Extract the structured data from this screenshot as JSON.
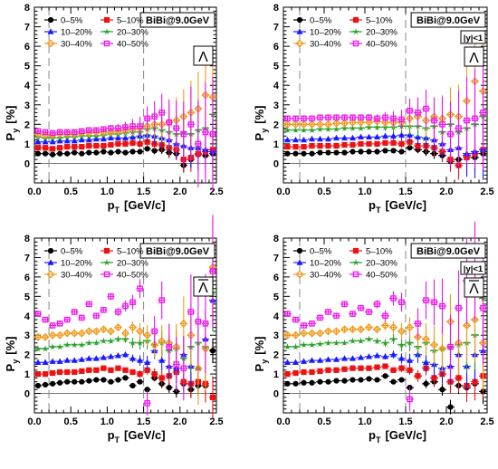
{
  "chart_data": [
    {
      "type": "scatter",
      "tag": "BiBi@9.0GeV",
      "particle": "Λ",
      "particle_bar": false,
      "rapidity_cut": "",
      "xlabel": "p_T [GeV/c]",
      "ylabel": "P_y [%]",
      "xlim": [
        0,
        2.5
      ],
      "ylim": [
        -1,
        8
      ],
      "xticks": [
        "0.0",
        "0.5",
        "1.0",
        "1.5",
        "2.0",
        "2.5"
      ],
      "yticks": [
        "0",
        "1",
        "2",
        "3",
        "4",
        "5",
        "6",
        "7",
        "8"
      ],
      "cut_lines_x": [
        0.2,
        1.5
      ],
      "legend_placement": "top-left",
      "x": [
        0.05,
        0.15,
        0.25,
        0.35,
        0.45,
        0.55,
        0.65,
        0.75,
        0.85,
        0.95,
        1.05,
        1.15,
        1.25,
        1.35,
        1.45,
        1.55,
        1.65,
        1.75,
        1.85,
        1.95,
        2.05,
        2.15,
        2.25,
        2.35,
        2.45
      ],
      "series": [
        {
          "name": "0–5%",
          "values": [
            0.5,
            0.5,
            0.45,
            0.5,
            0.5,
            0.55,
            0.5,
            0.55,
            0.55,
            0.6,
            0.55,
            0.6,
            0.55,
            0.6,
            0.6,
            0.75,
            0.65,
            0.7,
            0.55,
            0.5,
            -0.1,
            0.2,
            0.45,
            0.4,
            0.5
          ]
        },
        {
          "name": "5–10%",
          "values": [
            0.8,
            0.8,
            0.75,
            0.8,
            0.85,
            0.85,
            0.85,
            0.9,
            0.9,
            0.9,
            0.95,
            1.0,
            1.0,
            1.05,
            1.0,
            1.1,
            1.0,
            0.95,
            0.8,
            0.7,
            0.2,
            0.3,
            0.5,
            0.6,
            0.7
          ]
        },
        {
          "name": "10–20%",
          "values": [
            1.1,
            1.1,
            1.1,
            1.15,
            1.15,
            1.15,
            1.2,
            1.2,
            1.25,
            1.25,
            1.3,
            1.3,
            1.3,
            1.35,
            1.4,
            1.45,
            1.4,
            1.3,
            1.2,
            1.0,
            0.9,
            0.8,
            0.8,
            0.7,
            0.6
          ]
        },
        {
          "name": "20–30%",
          "values": [
            1.35,
            1.3,
            1.3,
            1.3,
            1.35,
            1.35,
            1.4,
            1.4,
            1.4,
            1.45,
            1.5,
            1.5,
            1.55,
            1.6,
            1.6,
            1.75,
            1.8,
            1.7,
            1.6,
            1.5,
            1.6,
            1.5,
            1.7,
            1.8,
            2.5
          ]
        },
        {
          "name": "30–40%",
          "values": [
            1.5,
            1.45,
            1.45,
            1.5,
            1.5,
            1.5,
            1.55,
            1.55,
            1.6,
            1.6,
            1.6,
            1.65,
            1.7,
            1.75,
            1.8,
            1.9,
            2.0,
            2.0,
            2.1,
            2.2,
            2.4,
            2.6,
            2.8,
            3.5,
            3.4
          ]
        },
        {
          "name": "40–50%",
          "values": [
            1.65,
            1.6,
            1.55,
            1.6,
            1.6,
            1.6,
            1.65,
            1.7,
            1.7,
            1.75,
            1.8,
            1.8,
            1.85,
            1.9,
            1.9,
            2.3,
            2.4,
            2.6,
            2.1,
            1.8,
            1.5,
            2.0,
            1.0,
            1.6,
            1.5
          ]
        }
      ]
    },
    {
      "type": "scatter",
      "tag": "BiBi@9.0GeV",
      "particle": "Λ",
      "particle_bar": false,
      "rapidity_cut": "|y|<1",
      "xlabel": "p_T [GeV/c]",
      "ylabel": "P_y [%]",
      "xlim": [
        0,
        2.5
      ],
      "ylim": [
        -1,
        8
      ],
      "xticks": [
        "0.0",
        "0.5",
        "1.0",
        "1.5",
        "2.0",
        "2.5"
      ],
      "yticks": [
        "0",
        "1",
        "2",
        "3",
        "4",
        "5",
        "6",
        "7",
        "8"
      ],
      "cut_lines_x": [
        0.2,
        1.5
      ],
      "legend_placement": "top-left",
      "x": [
        0.05,
        0.15,
        0.25,
        0.35,
        0.45,
        0.55,
        0.65,
        0.75,
        0.85,
        0.95,
        1.05,
        1.15,
        1.25,
        1.35,
        1.45,
        1.55,
        1.65,
        1.75,
        1.85,
        1.95,
        2.05,
        2.15,
        2.25,
        2.35,
        2.45
      ],
      "series": [
        {
          "name": "0–5%",
          "values": [
            0.5,
            0.5,
            0.5,
            0.5,
            0.55,
            0.55,
            0.55,
            0.55,
            0.6,
            0.6,
            0.6,
            0.6,
            0.65,
            0.65,
            0.6,
            0.8,
            0.7,
            0.6,
            0.5,
            0.4,
            0.1,
            0.2,
            0.4,
            0.3,
            0.5
          ]
        },
        {
          "name": "5–10%",
          "values": [
            0.85,
            0.85,
            0.85,
            0.9,
            0.9,
            0.9,
            0.9,
            0.95,
            0.95,
            1.0,
            1.0,
            1.0,
            1.05,
            1.05,
            1.0,
            1.1,
            0.9,
            0.9,
            0.8,
            0.6,
            0.2,
            -0.1,
            0.3,
            0.5,
            0.7
          ]
        },
        {
          "name": "10–20%",
          "values": [
            1.2,
            1.2,
            1.2,
            1.25,
            1.25,
            1.25,
            1.3,
            1.3,
            1.3,
            1.35,
            1.35,
            1.35,
            1.4,
            1.4,
            1.45,
            1.45,
            1.35,
            1.3,
            1.2,
            1.0,
            0.7,
            0.8,
            0.5,
            0.6,
            0.7
          ]
        },
        {
          "name": "20–30%",
          "values": [
            1.7,
            1.7,
            1.7,
            1.7,
            1.75,
            1.75,
            1.75,
            1.8,
            1.8,
            1.8,
            1.85,
            1.85,
            1.85,
            1.85,
            1.9,
            1.9,
            1.9,
            1.8,
            1.9,
            1.6,
            2.0,
            1.6,
            1.8,
            2.0,
            2.4
          ]
        },
        {
          "name": "30–40%",
          "values": [
            2.0,
            2.0,
            2.0,
            2.0,
            2.0,
            2.0,
            2.05,
            2.05,
            2.1,
            2.1,
            2.1,
            2.15,
            2.1,
            2.1,
            2.1,
            2.3,
            2.4,
            2.2,
            2.4,
            2.3,
            2.5,
            2.4,
            3.2,
            4.2,
            3.7
          ]
        },
        {
          "name": "40–50%",
          "values": [
            2.3,
            2.3,
            2.3,
            2.3,
            2.35,
            2.35,
            2.35,
            2.35,
            2.35,
            2.35,
            2.35,
            2.3,
            2.35,
            2.3,
            2.25,
            2.7,
            2.6,
            2.8,
            2.2,
            2.0,
            1.5,
            1.8,
            2.2,
            2.3,
            2.6
          ]
        }
      ]
    },
    {
      "type": "scatter",
      "tag": "BiBi@9.0GeV",
      "particle": "Λ",
      "particle_bar": true,
      "rapidity_cut": "",
      "xlabel": "p_T [GeV/c]",
      "ylabel": "P_y [%]",
      "xlim": [
        0,
        2.5
      ],
      "ylim": [
        -1,
        8
      ],
      "xticks": [
        "0.0",
        "0.5",
        "1.0",
        "1.5",
        "2.0",
        "2.5"
      ],
      "yticks": [
        "0",
        "1",
        "2",
        "3",
        "4",
        "5",
        "6",
        "7",
        "8"
      ],
      "cut_lines_x": [
        0.2,
        1.5
      ],
      "legend_placement": "top-left",
      "x": [
        0.05,
        0.15,
        0.25,
        0.35,
        0.45,
        0.55,
        0.65,
        0.75,
        0.85,
        0.95,
        1.05,
        1.15,
        1.25,
        1.35,
        1.45,
        1.55,
        1.65,
        1.75,
        1.85,
        1.95,
        2.05,
        2.15,
        2.25,
        2.35,
        2.45
      ],
      "series": [
        {
          "name": "0–5%",
          "values": [
            0.4,
            0.45,
            0.5,
            0.55,
            0.6,
            0.6,
            0.6,
            0.65,
            0.7,
            0.7,
            0.6,
            0.7,
            0.8,
            0.4,
            0.6,
            0.2,
            0.8,
            0.5,
            0.3,
            0.1,
            0.5,
            0.2,
            0.4,
            0.4,
            2.2
          ]
        },
        {
          "name": "5–10%",
          "values": [
            1.0,
            1.0,
            1.05,
            1.1,
            1.1,
            1.1,
            1.15,
            1.2,
            1.2,
            1.3,
            1.2,
            1.3,
            1.2,
            1.1,
            1.0,
            1.2,
            1.0,
            0.8,
            0.9,
            1.1,
            0.6,
            0.5,
            0.6,
            0.5,
            -0.2
          ]
        },
        {
          "name": "10–20%",
          "values": [
            1.6,
            1.6,
            1.65,
            1.65,
            1.7,
            1.7,
            1.75,
            1.8,
            1.8,
            1.85,
            1.9,
            1.95,
            2.0,
            1.8,
            1.7,
            1.6,
            2.2,
            1.7,
            1.4,
            1.3,
            2.0,
            1.4,
            1.3,
            2.8,
            4.8
          ]
        },
        {
          "name": "20–30%",
          "values": [
            2.3,
            2.3,
            2.4,
            2.4,
            2.5,
            2.5,
            2.5,
            2.6,
            2.6,
            2.7,
            2.7,
            2.8,
            2.8,
            2.6,
            2.6,
            2.7,
            2.5,
            2.6,
            2.2,
            2.3,
            1.8,
            2.4,
            2.6,
            2.4,
            5.2
          ]
        },
        {
          "name": "30–40%",
          "values": [
            2.9,
            2.9,
            3.0,
            3.0,
            3.1,
            3.1,
            3.1,
            3.2,
            3.2,
            3.3,
            3.2,
            3.4,
            3.1,
            3.4,
            3.2,
            3.0,
            2.5,
            2.7,
            2.6,
            2.4,
            3.6,
            3.0,
            1.3,
            2.3,
            6.5
          ]
        },
        {
          "name": "40–50%",
          "values": [
            4.1,
            3.8,
            3.5,
            3.6,
            3.8,
            4.2,
            3.9,
            4.6,
            4.0,
            4.3,
            5.0,
            4.2,
            4.5,
            4.7,
            5.4,
            -0.5,
            3.2,
            4.8,
            2.4,
            1.5,
            1.3,
            4.2,
            3.7,
            3.6,
            6.3
          ]
        }
      ]
    },
    {
      "type": "scatter",
      "tag": "BiBi@9.0GeV",
      "particle": "Λ",
      "particle_bar": true,
      "rapidity_cut": "|y|<1",
      "xlabel": "p_T [GeV/c]",
      "ylabel": "P_y [%]",
      "xlim": [
        0,
        2.5
      ],
      "ylim": [
        -1,
        8
      ],
      "xticks": [
        "0.0",
        "0.5",
        "1.0",
        "1.5",
        "2.0",
        "2.5"
      ],
      "yticks": [
        "0",
        "1",
        "2",
        "3",
        "4",
        "5",
        "6",
        "7",
        "8"
      ],
      "cut_lines_x": [
        0.2,
        1.5
      ],
      "legend_placement": "top-left",
      "x": [
        0.05,
        0.15,
        0.25,
        0.35,
        0.45,
        0.55,
        0.65,
        0.75,
        0.85,
        0.95,
        1.05,
        1.15,
        1.25,
        1.35,
        1.45,
        1.55,
        1.65,
        1.75,
        1.85,
        1.95,
        2.05,
        2.15,
        2.25,
        2.35,
        2.45
      ],
      "series": [
        {
          "name": "0–5%",
          "values": [
            0.5,
            0.5,
            0.55,
            0.55,
            0.6,
            0.6,
            0.65,
            0.65,
            0.7,
            0.7,
            0.75,
            0.7,
            0.9,
            0.6,
            0.7,
            0.3,
            0.9,
            0.5,
            0.6,
            0.2,
            -0.7,
            0.4,
            0.3,
            0.5,
            0.1
          ]
        },
        {
          "name": "5–10%",
          "values": [
            1.0,
            1.05,
            1.1,
            1.1,
            1.15,
            1.2,
            1.2,
            1.25,
            1.3,
            1.3,
            1.3,
            1.35,
            1.4,
            1.2,
            1.3,
            1.2,
            0.9,
            1.3,
            0.8,
            1.0,
            0.6,
            0.8,
            0.4,
            0.6,
            0.9
          ]
        },
        {
          "name": "10–20%",
          "values": [
            1.6,
            1.6,
            1.65,
            1.7,
            1.7,
            1.75,
            1.75,
            1.8,
            1.8,
            1.85,
            1.9,
            1.95,
            1.9,
            2.0,
            1.8,
            1.7,
            2.0,
            1.6,
            1.5,
            1.3,
            1.4,
            2.0,
            1.4,
            2.0,
            2.2
          ]
        },
        {
          "name": "20–30%",
          "values": [
            2.4,
            2.4,
            2.5,
            2.5,
            2.55,
            2.6,
            2.6,
            2.6,
            2.7,
            2.7,
            2.8,
            2.7,
            2.6,
            2.8,
            2.5,
            2.6,
            2.4,
            2.6,
            2.2,
            2.3,
            2.4,
            2.5,
            2.6,
            3.0,
            4.9
          ]
        },
        {
          "name": "30–40%",
          "values": [
            3.0,
            3.0,
            3.1,
            3.1,
            3.1,
            3.2,
            3.2,
            3.3,
            3.3,
            3.3,
            3.4,
            3.3,
            3.5,
            3.4,
            3.2,
            3.4,
            2.9,
            2.8,
            2.5,
            2.3,
            3.7,
            2.6,
            3.5,
            3.8,
            2.6
          ]
        },
        {
          "name": "40–50%",
          "values": [
            4.1,
            3.8,
            3.5,
            3.6,
            3.9,
            4.2,
            4.0,
            4.6,
            4.1,
            4.4,
            4.2,
            4.6,
            4.0,
            4.9,
            4.7,
            -0.3,
            3.6,
            4.8,
            4.7,
            4.5,
            2.4,
            4.4,
            5.8,
            6.3,
            4.4
          ]
        }
      ]
    }
  ],
  "series_styles": [
    {
      "color": "#000000",
      "marker": "circle"
    },
    {
      "color": "#ee1111",
      "marker": "square"
    },
    {
      "color": "#1a1aff",
      "marker": "triangle"
    },
    {
      "color": "#2aa02a",
      "marker": "star"
    },
    {
      "color": "#f09a1a",
      "marker": "open-diamond"
    },
    {
      "color": "#ee11ee",
      "marker": "open-square"
    }
  ]
}
